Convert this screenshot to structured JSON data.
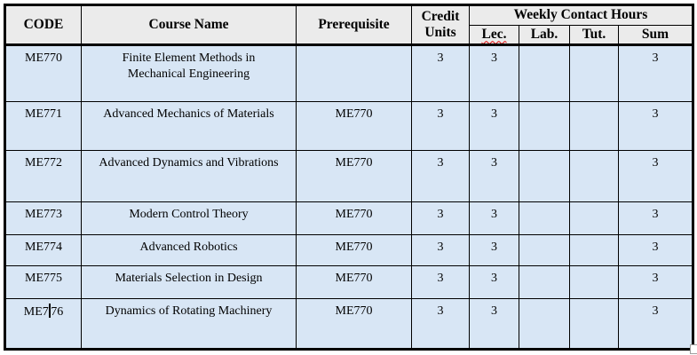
{
  "colors": {
    "header_bg": "#ebebeb",
    "row_bg": "#d8e6f5",
    "border": "#000000",
    "spellcheck_underline": "#dd0404"
  },
  "header": {
    "code": "CODE",
    "course_name": "Course Name",
    "prerequisite": "Prerequisite",
    "credit_units": "Credit Units",
    "weekly_contact_hours": "Weekly Contact Hours",
    "lec": "Lec.",
    "lab": "Lab.",
    "tut": "Tut.",
    "sum": "Sum"
  },
  "rows": [
    {
      "code": "ME770",
      "course_name": "Finite Element Methods in Mechanical Engineering",
      "prerequisite": "",
      "credit_units": "3",
      "lec": "3",
      "lab": "",
      "tut": "",
      "sum": "3"
    },
    {
      "code": "ME771",
      "course_name": "Advanced Mechanics of Materials",
      "prerequisite": "ME770",
      "credit_units": "3",
      "lec": "3",
      "lab": "",
      "tut": "",
      "sum": "3"
    },
    {
      "code": "ME772",
      "course_name": "Advanced Dynamics and Vibrations",
      "prerequisite": "ME770",
      "credit_units": "3",
      "lec": "3",
      "lab": "",
      "tut": "",
      "sum": "3"
    },
    {
      "code": "ME773",
      "course_name": "Modern Control Theory",
      "prerequisite": "ME770",
      "credit_units": "3",
      "lec": "3",
      "lab": "",
      "tut": "",
      "sum": "3"
    },
    {
      "code": "ME774",
      "course_name": "Advanced Robotics",
      "prerequisite": "ME770",
      "credit_units": "3",
      "lec": "3",
      "lab": "",
      "tut": "",
      "sum": "3"
    },
    {
      "code": "ME775",
      "course_name": "Materials Selection in Design",
      "prerequisite": "ME770",
      "credit_units": "3",
      "lec": "3",
      "lab": "",
      "tut": "",
      "sum": "3"
    },
    {
      "code": "ME776",
      "caret_index": 3,
      "course_name": "Dynamics of Rotating Machinery",
      "prerequisite": "ME770",
      "credit_units": "3",
      "lec": "3",
      "lab": "",
      "tut": "",
      "sum": "3"
    }
  ]
}
